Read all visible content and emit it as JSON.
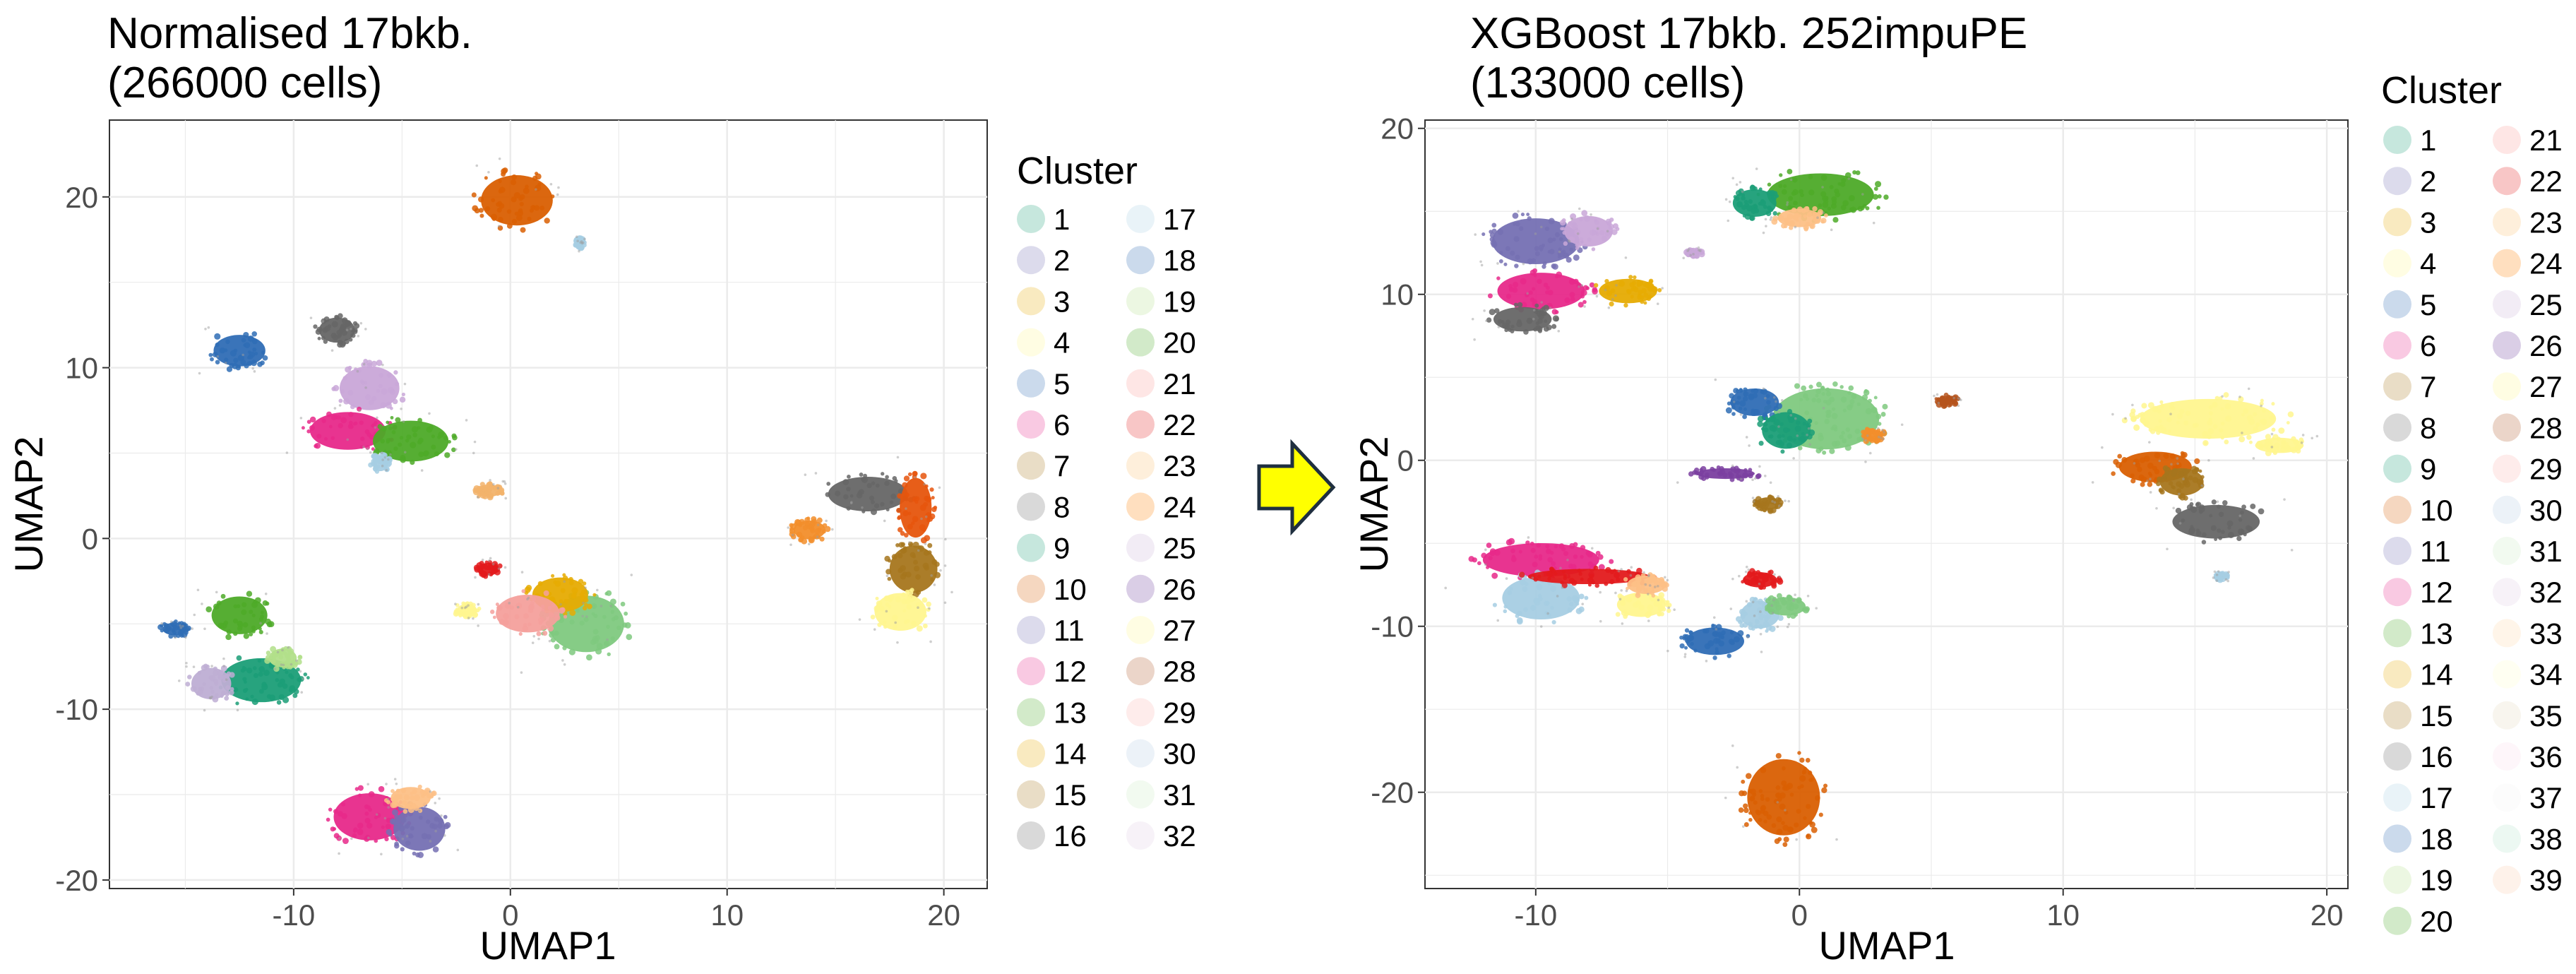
{
  "arrow": {
    "icon": "right-arrow-icon",
    "fill": "#FFFF00",
    "stroke": "#1F2F3F"
  },
  "chart_data": [
    {
      "type": "scatter",
      "title": [
        "Normalised 17bkb.",
        "(266000 cells)"
      ],
      "xlabel": "UMAP1",
      "ylabel": "UMAP2",
      "xlim": [
        -18.5,
        22
      ],
      "ylim": [
        -20.5,
        24.5
      ],
      "xticks": [
        -10,
        0,
        10,
        20
      ],
      "xtick_labels": [
        "-10",
        "0",
        "10",
        "20"
      ],
      "yticks": [
        -20,
        -10,
        0,
        10,
        20
      ],
      "ytick_labels": [
        "-20",
        "-10",
        "0",
        "10",
        "20"
      ],
      "grid": true,
      "legend": {
        "title": "Cluster",
        "placement": "right",
        "columns": 2,
        "entries": [
          "1",
          "2",
          "3",
          "4",
          "5",
          "6",
          "7",
          "8",
          "9",
          "10",
          "11",
          "12",
          "13",
          "14",
          "15",
          "16",
          "17",
          "18",
          "19",
          "20",
          "21",
          "22",
          "23",
          "24",
          "25",
          "26",
          "27",
          "28",
          "29",
          "30",
          "31",
          "32"
        ]
      },
      "clusters": [
        {
          "x": 0.3,
          "y": 19.8,
          "rx": 1.8,
          "ry": 1.6,
          "color": "#D95F02"
        },
        {
          "x": -12.5,
          "y": 11.0,
          "rx": 1.3,
          "ry": 1.0,
          "color": "#2F6DB5"
        },
        {
          "x": -8.0,
          "y": 12.2,
          "rx": 0.9,
          "ry": 0.8,
          "color": "#666666"
        },
        {
          "x": -6.5,
          "y": 8.8,
          "rx": 1.5,
          "ry": 1.4,
          "color": "#C9A7D8"
        },
        {
          "x": -7.5,
          "y": 6.3,
          "rx": 1.9,
          "ry": 1.2,
          "color": "#E7298A"
        },
        {
          "x": -4.6,
          "y": 5.7,
          "rx": 1.9,
          "ry": 1.3,
          "color": "#4DAA28"
        },
        {
          "x": -1.0,
          "y": 2.8,
          "rx": 0.6,
          "ry": 0.4,
          "color": "#F2B36B"
        },
        {
          "x": 16.5,
          "y": 2.6,
          "rx": 2.0,
          "ry": 1.1,
          "color": "#666666"
        },
        {
          "x": 18.7,
          "y": 1.8,
          "rx": 0.8,
          "ry": 1.9,
          "color": "#E6550D"
        },
        {
          "x": 18.6,
          "y": -1.8,
          "rx": 1.2,
          "ry": 1.5,
          "color": "#A6761D"
        },
        {
          "x": 18.0,
          "y": -4.3,
          "rx": 1.3,
          "ry": 1.2,
          "color": "#FFF68F"
        },
        {
          "x": 13.8,
          "y": 0.5,
          "rx": 0.8,
          "ry": 0.6,
          "color": "#F28E2B"
        },
        {
          "x": 3.5,
          "y": -5.0,
          "rx": 1.9,
          "ry": 1.8,
          "color": "#7FC97F"
        },
        {
          "x": 2.3,
          "y": -3.3,
          "rx": 1.4,
          "ry": 1.1,
          "color": "#E6AB02"
        },
        {
          "x": 0.8,
          "y": -4.4,
          "rx": 1.6,
          "ry": 1.2,
          "color": "#F4A09C"
        },
        {
          "x": -1.0,
          "y": -1.8,
          "rx": 0.5,
          "ry": 0.4,
          "color": "#E31A1C"
        },
        {
          "x": -2.0,
          "y": -4.2,
          "rx": 0.5,
          "ry": 0.4,
          "color": "#FFF68F"
        },
        {
          "x": -12.5,
          "y": -4.5,
          "rx": 1.4,
          "ry": 1.2,
          "color": "#4DAA28"
        },
        {
          "x": -11.5,
          "y": -8.3,
          "rx": 2.0,
          "ry": 1.4,
          "color": "#1B9E77"
        },
        {
          "x": -13.8,
          "y": -8.5,
          "rx": 1.0,
          "ry": 1.0,
          "color": "#BEAED4"
        },
        {
          "x": -10.5,
          "y": -7.0,
          "rx": 0.7,
          "ry": 0.6,
          "color": "#B2DF8A"
        },
        {
          "x": -15.5,
          "y": -5.3,
          "rx": 0.6,
          "ry": 0.4,
          "color": "#2F6DB5"
        },
        {
          "x": -6.5,
          "y": -16.3,
          "rx": 1.8,
          "ry": 1.5,
          "color": "#E7298A"
        },
        {
          "x": -4.2,
          "y": -17.0,
          "rx": 1.3,
          "ry": 1.4,
          "color": "#7570B3"
        },
        {
          "x": -4.6,
          "y": -15.2,
          "rx": 1.0,
          "ry": 0.7,
          "color": "#FDC086"
        },
        {
          "x": 3.2,
          "y": 17.3,
          "rx": 0.2,
          "ry": 0.3,
          "color": "#A6CEE3"
        },
        {
          "x": -6.0,
          "y": 4.4,
          "rx": 0.4,
          "ry": 0.5,
          "color": "#A6CEE3"
        }
      ]
    },
    {
      "type": "scatter",
      "title": [
        "XGBoost 17bkb. 252impuPE",
        "(133000 cells)"
      ],
      "xlabel": "UMAP1",
      "ylabel": "UMAP2",
      "xlim": [
        -14.2,
        20.8
      ],
      "ylim": [
        -25.8,
        20.5
      ],
      "xticks": [
        -10,
        0,
        10,
        20
      ],
      "xtick_labels": [
        "-10",
        "0",
        "10",
        "20"
      ],
      "yticks": [
        -20,
        -10,
        0,
        10,
        20
      ],
      "ytick_labels": [
        "-20",
        "-10",
        "0",
        "10",
        "20"
      ],
      "grid": true,
      "legend": {
        "title": "Cluster",
        "placement": "right",
        "columns": 2,
        "entries": [
          "1",
          "2",
          "3",
          "4",
          "5",
          "6",
          "7",
          "8",
          "9",
          "10",
          "11",
          "12",
          "13",
          "14",
          "15",
          "16",
          "17",
          "18",
          "19",
          "20",
          "21",
          "22",
          "23",
          "24",
          "25",
          "26",
          "27",
          "28",
          "29",
          "30",
          "31",
          "32",
          "33",
          "34",
          "35",
          "36",
          "37",
          "38",
          "39"
        ]
      },
      "clusters": [
        {
          "x": 0.8,
          "y": 16.0,
          "rx": 2.2,
          "ry": 1.4,
          "color": "#4DAA28"
        },
        {
          "x": -1.7,
          "y": 15.5,
          "rx": 0.9,
          "ry": 0.9,
          "color": "#1B9E77"
        },
        {
          "x": 0.0,
          "y": 14.6,
          "rx": 0.9,
          "ry": 0.6,
          "color": "#FDC086"
        },
        {
          "x": -10.0,
          "y": 13.2,
          "rx": 1.8,
          "ry": 1.5,
          "color": "#7570B3"
        },
        {
          "x": -8.0,
          "y": 13.8,
          "rx": 1.0,
          "ry": 1.0,
          "color": "#C9A7D8"
        },
        {
          "x": -9.8,
          "y": 10.2,
          "rx": 1.8,
          "ry": 1.2,
          "color": "#E7298A"
        },
        {
          "x": -10.5,
          "y": 8.5,
          "rx": 1.2,
          "ry": 0.8,
          "color": "#666666"
        },
        {
          "x": -6.5,
          "y": 10.2,
          "rx": 1.2,
          "ry": 0.8,
          "color": "#E6AB02"
        },
        {
          "x": 1.0,
          "y": 2.5,
          "rx": 2.2,
          "ry": 2.0,
          "color": "#7FC97F"
        },
        {
          "x": -1.7,
          "y": 3.5,
          "rx": 1.0,
          "ry": 0.9,
          "color": "#2F6DB5"
        },
        {
          "x": -0.5,
          "y": 1.8,
          "rx": 1.0,
          "ry": 1.2,
          "color": "#1B9E77"
        },
        {
          "x": -2.8,
          "y": -0.8,
          "rx": 1.2,
          "ry": 0.35,
          "color": "#7B3FA0"
        },
        {
          "x": -1.2,
          "y": -2.6,
          "rx": 0.5,
          "ry": 0.4,
          "color": "#A6761D"
        },
        {
          "x": 2.8,
          "y": 1.5,
          "rx": 0.4,
          "ry": 0.4,
          "color": "#F28E2B"
        },
        {
          "x": 5.6,
          "y": 3.6,
          "rx": 0.4,
          "ry": 0.3,
          "color": "#B5541C"
        },
        {
          "x": 15.5,
          "y": 2.5,
          "rx": 2.8,
          "ry": 1.3,
          "color": "#FFF68F"
        },
        {
          "x": 13.5,
          "y": -0.4,
          "rx": 1.5,
          "ry": 1.0,
          "color": "#D95F02"
        },
        {
          "x": 14.5,
          "y": -1.3,
          "rx": 0.9,
          "ry": 0.9,
          "color": "#A6761D"
        },
        {
          "x": 15.8,
          "y": -3.7,
          "rx": 1.8,
          "ry": 1.1,
          "color": "#666666"
        },
        {
          "x": 18.2,
          "y": 0.9,
          "rx": 1.0,
          "ry": 0.5,
          "color": "#FFF68F"
        },
        {
          "x": -9.8,
          "y": -6.0,
          "rx": 2.4,
          "ry": 1.1,
          "color": "#E7298A"
        },
        {
          "x": -9.8,
          "y": -8.3,
          "rx": 1.6,
          "ry": 1.4,
          "color": "#A6CEE3"
        },
        {
          "x": -8.0,
          "y": -7.0,
          "rx": 2.5,
          "ry": 0.5,
          "color": "#E31A1C"
        },
        {
          "x": -6.0,
          "y": -8.7,
          "rx": 1.0,
          "ry": 0.8,
          "color": "#FFF68F"
        },
        {
          "x": -5.8,
          "y": -7.5,
          "rx": 0.8,
          "ry": 0.6,
          "color": "#FDC086"
        },
        {
          "x": -3.2,
          "y": -10.9,
          "rx": 1.2,
          "ry": 0.9,
          "color": "#2F6DB5"
        },
        {
          "x": -1.5,
          "y": -9.3,
          "rx": 0.8,
          "ry": 0.9,
          "color": "#A6CEE3"
        },
        {
          "x": -1.5,
          "y": -7.2,
          "rx": 0.7,
          "ry": 0.5,
          "color": "#E31A1C"
        },
        {
          "x": -0.5,
          "y": -8.8,
          "rx": 0.8,
          "ry": 0.6,
          "color": "#7FC97F"
        },
        {
          "x": -0.6,
          "y": -20.3,
          "rx": 1.5,
          "ry": 2.5,
          "color": "#D95F02"
        },
        {
          "x": -4.0,
          "y": 12.5,
          "rx": 0.3,
          "ry": 0.2,
          "color": "#C9A7D8"
        },
        {
          "x": 16.0,
          "y": -7.0,
          "rx": 0.2,
          "ry": 0.2,
          "color": "#A6CEE3"
        }
      ]
    }
  ]
}
